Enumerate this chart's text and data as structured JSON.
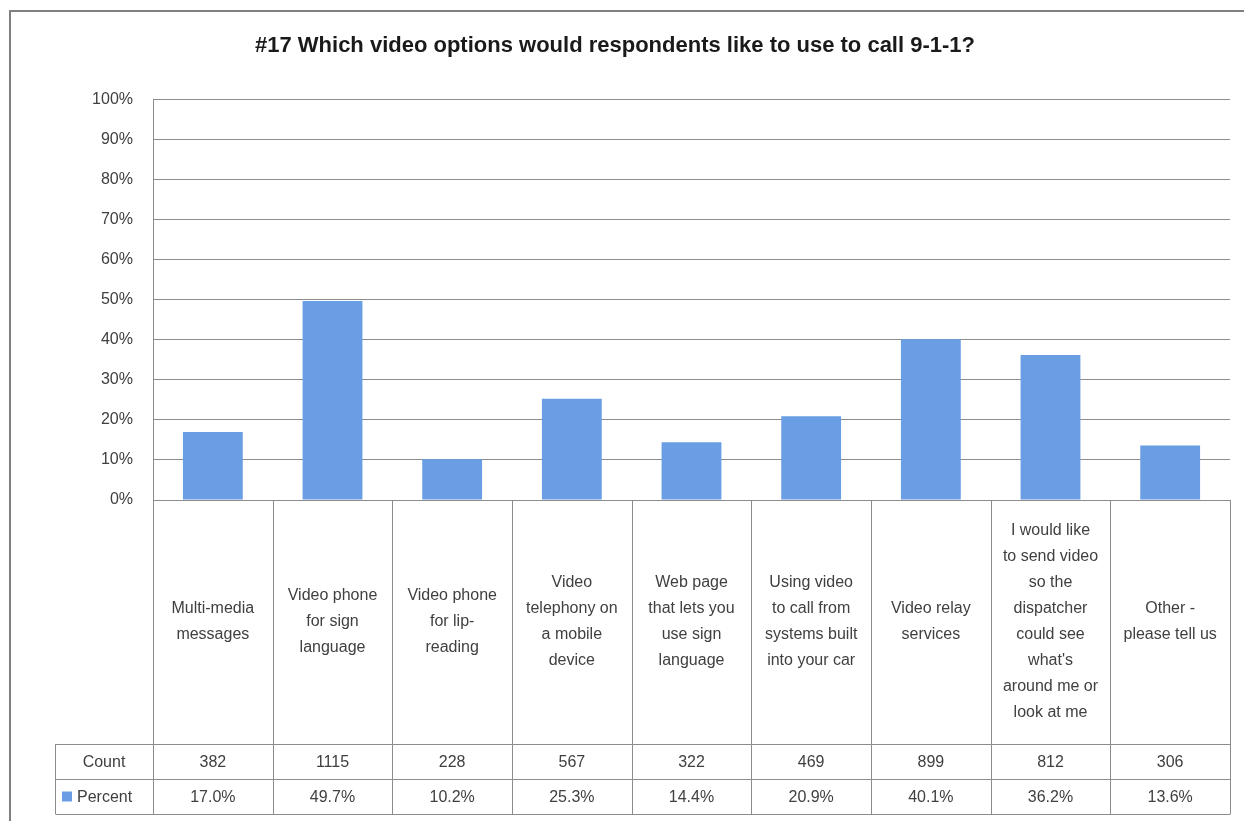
{
  "chart_data": {
    "type": "bar",
    "title": "#17 Which video options would respondents like to use to call 9-1-1?",
    "categories": [
      "Multi-media messages",
      "Video phone for sign language",
      "Video phone for lip-reading",
      "Video telephony on a mobile device",
      "Web page that lets you use sign language",
      "Using video to call from systems built into your car",
      "Video relay services",
      "I would like to send video so the dispatcher could see what's around me or look at me",
      "Other - please tell us"
    ],
    "series": [
      {
        "name": "Percent",
        "color": "#6a9ee4",
        "values": [
          17.0,
          49.7,
          10.2,
          25.3,
          14.4,
          20.9,
          40.1,
          36.2,
          13.6
        ],
        "value_labels": [
          "17.0%",
          "49.7%",
          "10.2%",
          "25.3%",
          "14.4%",
          "20.9%",
          "40.1%",
          "36.2%",
          "13.6%"
        ]
      }
    ],
    "annotations": [
      "Count",
      "382",
      "1115",
      "228",
      "567",
      "322",
      "469",
      "899",
      "812",
      "306"
    ],
    "ylim": [
      0,
      100
    ],
    "yticks": [
      {
        "value": 0,
        "label": "0%"
      },
      {
        "value": 10,
        "label": "10%"
      },
      {
        "value": 20,
        "label": "20%"
      },
      {
        "value": 30,
        "label": "30%"
      },
      {
        "value": 40,
        "label": "40%"
      },
      {
        "value": 50,
        "label": "50%"
      },
      {
        "value": 60,
        "label": "60%"
      },
      {
        "value": 70,
        "label": "70%"
      },
      {
        "value": 80,
        "label": "80%"
      },
      {
        "value": 90,
        "label": "90%"
      },
      {
        "value": 100,
        "label": "100%"
      }
    ],
    "grid": "y",
    "legend": "bottom left"
  }
}
